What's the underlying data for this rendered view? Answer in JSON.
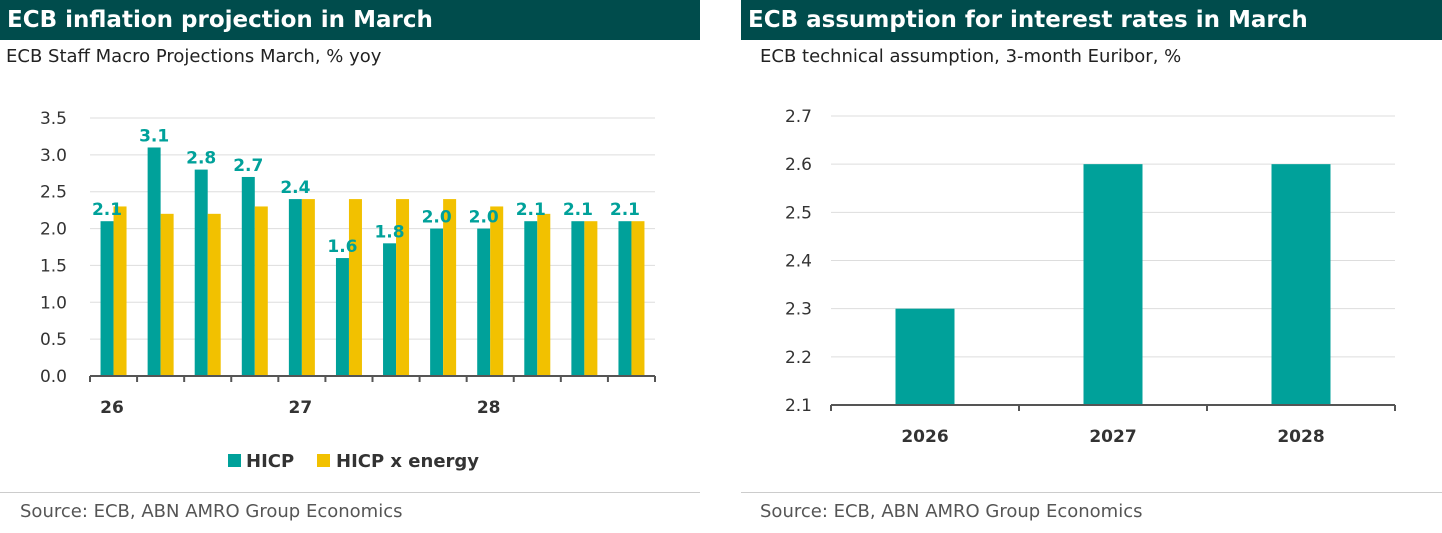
{
  "colors": {
    "header_bg": "#004c4c",
    "header_text": "#ffffff",
    "teal": "#00a19a",
    "yellow": "#f2c100",
    "grid": "#dddddd",
    "axis": "#555555"
  },
  "left": {
    "title": "ECB inflation projection in March",
    "subtitle": "ECB Staff Macro Projections March, % yoy",
    "source": "Source: ECB, ABN AMRO Group Economics"
  },
  "right": {
    "title": "ECB assumption for interest rates in March",
    "subtitle": "ECB technical assumption, 3-month Euribor, %",
    "source": "Source:  ECB, ABN AMRO Group Economics"
  },
  "chart_data": [
    {
      "type": "bar",
      "title": "ECB inflation projection in March",
      "subtitle": "ECB Staff Macro Projections March, % yoy",
      "x_tick_labels": [
        "26",
        "27",
        "28"
      ],
      "x_tick_label_positions": [
        0,
        4,
        8
      ],
      "quarters": 12,
      "ylim": [
        0,
        3.5
      ],
      "yticks": [
        0.0,
        0.5,
        1.0,
        1.5,
        2.0,
        2.5,
        3.0,
        3.5
      ],
      "ytick_labels": [
        "0.0",
        "0.5",
        "1.0",
        "1.5",
        "2.0",
        "2.5",
        "3.0",
        "3.5"
      ],
      "grid": true,
      "legend_position": "bottom",
      "series": [
        {
          "name": "HICP",
          "color": "#00a19a",
          "values": [
            2.1,
            3.1,
            2.8,
            2.7,
            2.4,
            1.6,
            1.8,
            2.0,
            2.0,
            2.1,
            2.1,
            2.1
          ],
          "labels": [
            "2.1",
            "3.1",
            "2.8",
            "2.7",
            "2.4",
            "1.6",
            "1.8",
            "2.0",
            "2.0",
            "2.1",
            "2.1",
            "2.1"
          ]
        },
        {
          "name": "HICP x energy",
          "color": "#f2c100",
          "values": [
            2.3,
            2.2,
            2.2,
            2.3,
            2.4,
            2.4,
            2.4,
            2.4,
            2.3,
            2.2,
            2.1,
            2.1
          ]
        }
      ]
    },
    {
      "type": "bar",
      "title": "ECB assumption for interest rates in March",
      "subtitle": "ECB technical assumption, 3-month Euribor, %",
      "categories": [
        "2026",
        "2027",
        "2028"
      ],
      "values": [
        2.3,
        2.6,
        2.6
      ],
      "ylim": [
        2.1,
        2.7
      ],
      "yticks": [
        2.1,
        2.2,
        2.3,
        2.4,
        2.5,
        2.6,
        2.7
      ],
      "ytick_labels": [
        "2.1",
        "2.2",
        "2.3",
        "2.4",
        "2.5",
        "2.6",
        "2.7"
      ],
      "grid": true,
      "color": "#00a19a"
    }
  ]
}
